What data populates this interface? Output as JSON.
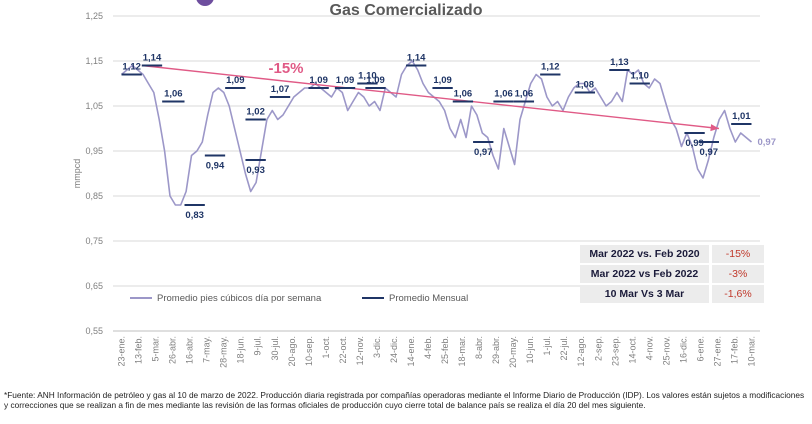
{
  "title": "Gas Comercializado",
  "footnote": "*Fuente: ANH Información de petróleo y gas al 10 de marzo de 2022. Producción diaria registrada por compañías operadoras mediante el Informe Diario de Producción (IDP). Los valores están sujetos a modificaciones y correcciones que se realizan a fin de mes mediante las revisión de las formas oficiales de producción cuyo cierre total de balance país se realiza el día 20 del mes siguiente.",
  "comparison_table": {
    "rows": [
      {
        "label": "Mar 2022 vs. Feb 2020",
        "value": "-15%"
      },
      {
        "label": "Mar 2022 vs Feb 2022",
        "value": "-3%"
      },
      {
        "label": "10 Mar Vs 3 Mar",
        "value": "-1,6%"
      }
    ]
  },
  "colors": {
    "weekly_line": "#9c97c8",
    "monthly_line": "#1f3566",
    "trend_arrow": "#e05a86",
    "grid": "#d9d9d9",
    "label_text": "#1f3566",
    "table_value": "#c0392b"
  },
  "chart_data": {
    "type": "line",
    "title": "Gas Comercializado",
    "ylabel": "mmpcd",
    "xlabel": "",
    "ylim": [
      0.55,
      1.25
    ],
    "yticks": [
      "0,55",
      "0,65",
      "0,75",
      "0,85",
      "0,95",
      "1,05",
      "1,15",
      "1,25"
    ],
    "grid": "horizontal",
    "legend": "inside bottom-left",
    "x_ticks": [
      "23-ene.",
      "13-feb.",
      "5-mar.",
      "26-abr.",
      "16-abr.",
      "7-may.",
      "28-may.",
      "18-jun.",
      "9-jul.",
      "30-jul.",
      "20-ago.",
      "10-sep.",
      "1-oct.",
      "22-oct.",
      "12-nov.",
      "3-dic.",
      "24-dic.",
      "14-ene.",
      "4-feb.",
      "25-feb.",
      "18-mar.",
      "8-abr.",
      "29-abr.",
      "20-may.",
      "10-jun.",
      "1-jul.",
      "22-jul.",
      "12-ago.",
      "2-sep.",
      "23-sep.",
      "14-oct.",
      "4-nov.",
      "25-nov.",
      "16-dic.",
      "6-ene.",
      "27-ene.",
      "17-feb.",
      "10-mar."
    ],
    "series": [
      {
        "name": "Promedio pies cúbicos día por semana",
        "values": [
          1.12,
          1.13,
          1.14,
          1.13,
          1.12,
          1.1,
          1.08,
          1.02,
          0.95,
          0.85,
          0.83,
          0.83,
          0.86,
          0.94,
          0.95,
          0.97,
          1.03,
          1.08,
          1.09,
          1.08,
          1.05,
          1.0,
          0.95,
          0.9,
          0.86,
          0.88,
          0.95,
          1.02,
          1.04,
          1.02,
          1.03,
          1.05,
          1.07,
          1.08,
          1.09,
          1.09,
          1.1,
          1.09,
          1.08,
          1.07,
          1.09,
          1.08,
          1.04,
          1.06,
          1.08,
          1.07,
          1.05,
          1.06,
          1.04,
          1.09,
          1.08,
          1.07,
          1.12,
          1.14,
          1.15,
          1.13,
          1.1,
          1.08,
          1.07,
          1.06,
          1.04,
          1.0,
          0.98,
          1.02,
          0.98,
          1.05,
          1.03,
          0.99,
          0.98,
          0.94,
          0.91,
          1.0,
          0.96,
          0.92,
          1.02,
          1.06,
          1.1,
          1.12,
          1.11,
          1.07,
          1.05,
          1.06,
          1.04,
          1.07,
          1.09,
          1.1,
          1.1,
          1.08,
          1.09,
          1.07,
          1.05,
          1.06,
          1.08,
          1.06,
          1.13,
          1.12,
          1.13,
          1.1,
          1.09,
          1.11,
          1.1,
          1.06,
          1.02,
          1.0,
          0.96,
          0.99,
          0.96,
          0.91,
          0.89,
          0.93,
          0.98,
          1.02,
          1.04,
          1.0,
          0.97,
          0.99,
          0.98,
          0.97
        ]
      },
      {
        "name": "Promedio Mensual",
        "segments": [
          {
            "x": [
              0,
              1.0
            ],
            "value": 1.12,
            "label": "1,12"
          },
          {
            "x": [
              1.0,
              2.0
            ],
            "value": 1.14,
            "label": "1,14"
          },
          {
            "x": [
              2.0,
              3.1
            ],
            "value": 1.06,
            "label": "1,06"
          },
          {
            "x": [
              3.1,
              4.1
            ],
            "value": 0.83,
            "label": "0,83"
          },
          {
            "x": [
              4.1,
              5.1
            ],
            "value": 0.94,
            "label": "0,94"
          },
          {
            "x": [
              5.1,
              6.1
            ],
            "value": 1.09,
            "label": "1,09"
          },
          {
            "x": [
              6.1,
              7.1
            ],
            "value": 1.02,
            "label": "1,02"
          },
          {
            "x": [
              6.1,
              7.1
            ],
            "value": 0.93,
            "label": "0,93"
          },
          {
            "x": [
              7.3,
              8.3
            ],
            "value": 1.07,
            "label": "1,07"
          },
          {
            "x": [
              9.2,
              10.2
            ],
            "value": 1.09,
            "label": "1,09"
          },
          {
            "x": [
              10.5,
              11.5
            ],
            "value": 1.09,
            "label": "1,09"
          },
          {
            "x": [
              11.6,
              12.6
            ],
            "value": 1.1,
            "label": "1,10"
          },
          {
            "x": [
              12.0,
              13.0
            ],
            "value": 1.09,
            "label": "1,09"
          },
          {
            "x": [
              14.0,
              15.0
            ],
            "value": 1.14,
            "label": "1,14"
          },
          {
            "x": [
              15.3,
              16.3
            ],
            "value": 1.09,
            "label": "1,09"
          },
          {
            "x": [
              16.3,
              17.3
            ],
            "value": 1.06,
            "label": "1,06"
          },
          {
            "x": [
              17.3,
              18.3
            ],
            "value": 0.97,
            "label": "0,97"
          },
          {
            "x": [
              18.3,
              19.3
            ],
            "value": 1.06,
            "label": "1,06"
          },
          {
            "x": [
              20.6,
              21.6
            ],
            "value": 1.12,
            "label": "1,12"
          },
          {
            "x": [
              19.3,
              20.3
            ],
            "value": 1.06,
            "label": "1,06"
          },
          {
            "x": [
              22.3,
              23.3
            ],
            "value": 1.08,
            "label": "1,08"
          },
          {
            "x": [
              24.0,
              25.0
            ],
            "value": 1.13,
            "label": "1,13"
          },
          {
            "x": [
              25.0,
              26.0
            ],
            "value": 1.1,
            "label": "1,10"
          },
          {
            "x": [
              27.7,
              28.7
            ],
            "value": 0.99,
            "label": "0,99"
          },
          {
            "x": [
              28.4,
              29.4
            ],
            "value": 0.97,
            "label": "0,97"
          },
          {
            "x": [
              30.0,
              31.0
            ],
            "value": 1.01,
            "label": "1,01"
          }
        ]
      }
    ],
    "annotations": [
      {
        "text": "-15%",
        "type": "trend-arrow",
        "from": [
          1.0,
          1.14
        ],
        "to": [
          29.4,
          1.0
        ]
      },
      {
        "text": "0,97",
        "type": "end-label",
        "x": 31.0,
        "value": 0.97
      }
    ]
  }
}
